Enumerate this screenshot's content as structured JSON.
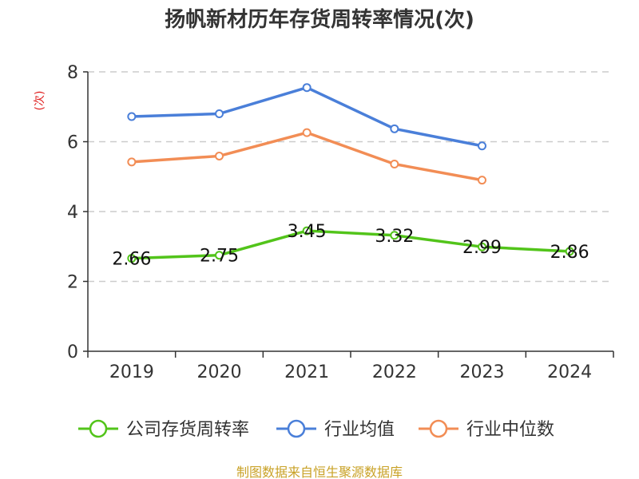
{
  "chart_data": {
    "type": "line",
    "title": "扬帆新材历年存货周转率情况(次)",
    "ylabel": "(次)",
    "xlabel": "",
    "categories": [
      "2019",
      "2020",
      "2021",
      "2022",
      "2023",
      "2024"
    ],
    "ylim": [
      0,
      8
    ],
    "yticks": [
      0,
      2,
      4,
      6,
      8
    ],
    "grid": true,
    "legend_position": "bottom",
    "series": [
      {
        "name": "公司存货周转率",
        "color": "#52c41a",
        "values": [
          2.66,
          2.75,
          3.45,
          3.32,
          2.99,
          2.86
        ],
        "labels": [
          "2.66",
          "2.75",
          "3.45",
          "3.32",
          "2.99",
          "2.86"
        ]
      },
      {
        "name": "行业均值",
        "color": "#4a7fd9",
        "values": [
          6.72,
          6.8,
          7.55,
          6.37,
          5.88,
          null
        ]
      },
      {
        "name": "行业中位数",
        "color": "#f28d55",
        "values": [
          5.42,
          5.59,
          6.26,
          5.36,
          4.9,
          null
        ]
      }
    ]
  },
  "source": "制图数据来自恒生聚源数据库"
}
